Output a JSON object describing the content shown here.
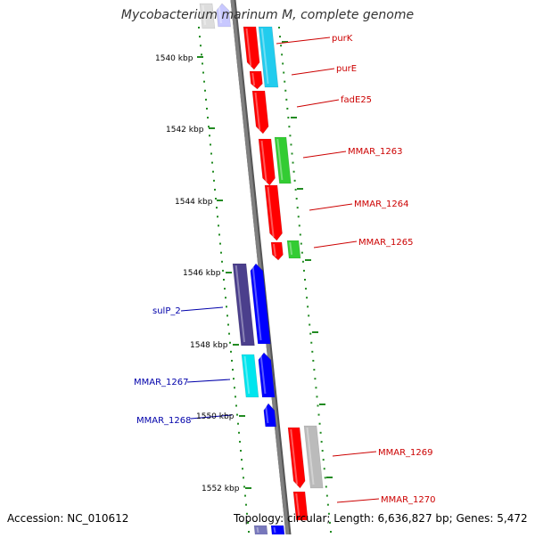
{
  "title": "Mycobacterium marinum M, complete genome",
  "accession": "Accession: NC_010612",
  "topology": "Topology: circular; Length: 6,636,827 bp; Genes: 5,472",
  "colors": {
    "backbone": "#808080",
    "tick": "#228b22",
    "forward_label": "#cc0000",
    "reverse_label": "#0000aa",
    "red_gene": "#ff0000",
    "cyan_gene": "#22ccee",
    "green_gene": "#33cc33",
    "indigo_gene": "#4b3f8c",
    "blue_gene": "#0000ff",
    "aqua_gene": "#00e5ee",
    "gray_gene": "#bbbbbb"
  },
  "scale_labels": [
    "1540 kbp",
    "1542 kbp",
    "1544 kbp",
    "1546 kbp",
    "1548 kbp",
    "1550 kbp",
    "1552 kbp"
  ],
  "gene_labels_forward": [
    "purK",
    "purE",
    "fadE25",
    "MMAR_1263",
    "MMAR_1264",
    "MMAR_1265",
    "MMAR_1269",
    "MMAR_1270"
  ],
  "gene_labels_reverse": [
    "sulP_2",
    "MMAR_1267",
    "MMAR_1268"
  ]
}
